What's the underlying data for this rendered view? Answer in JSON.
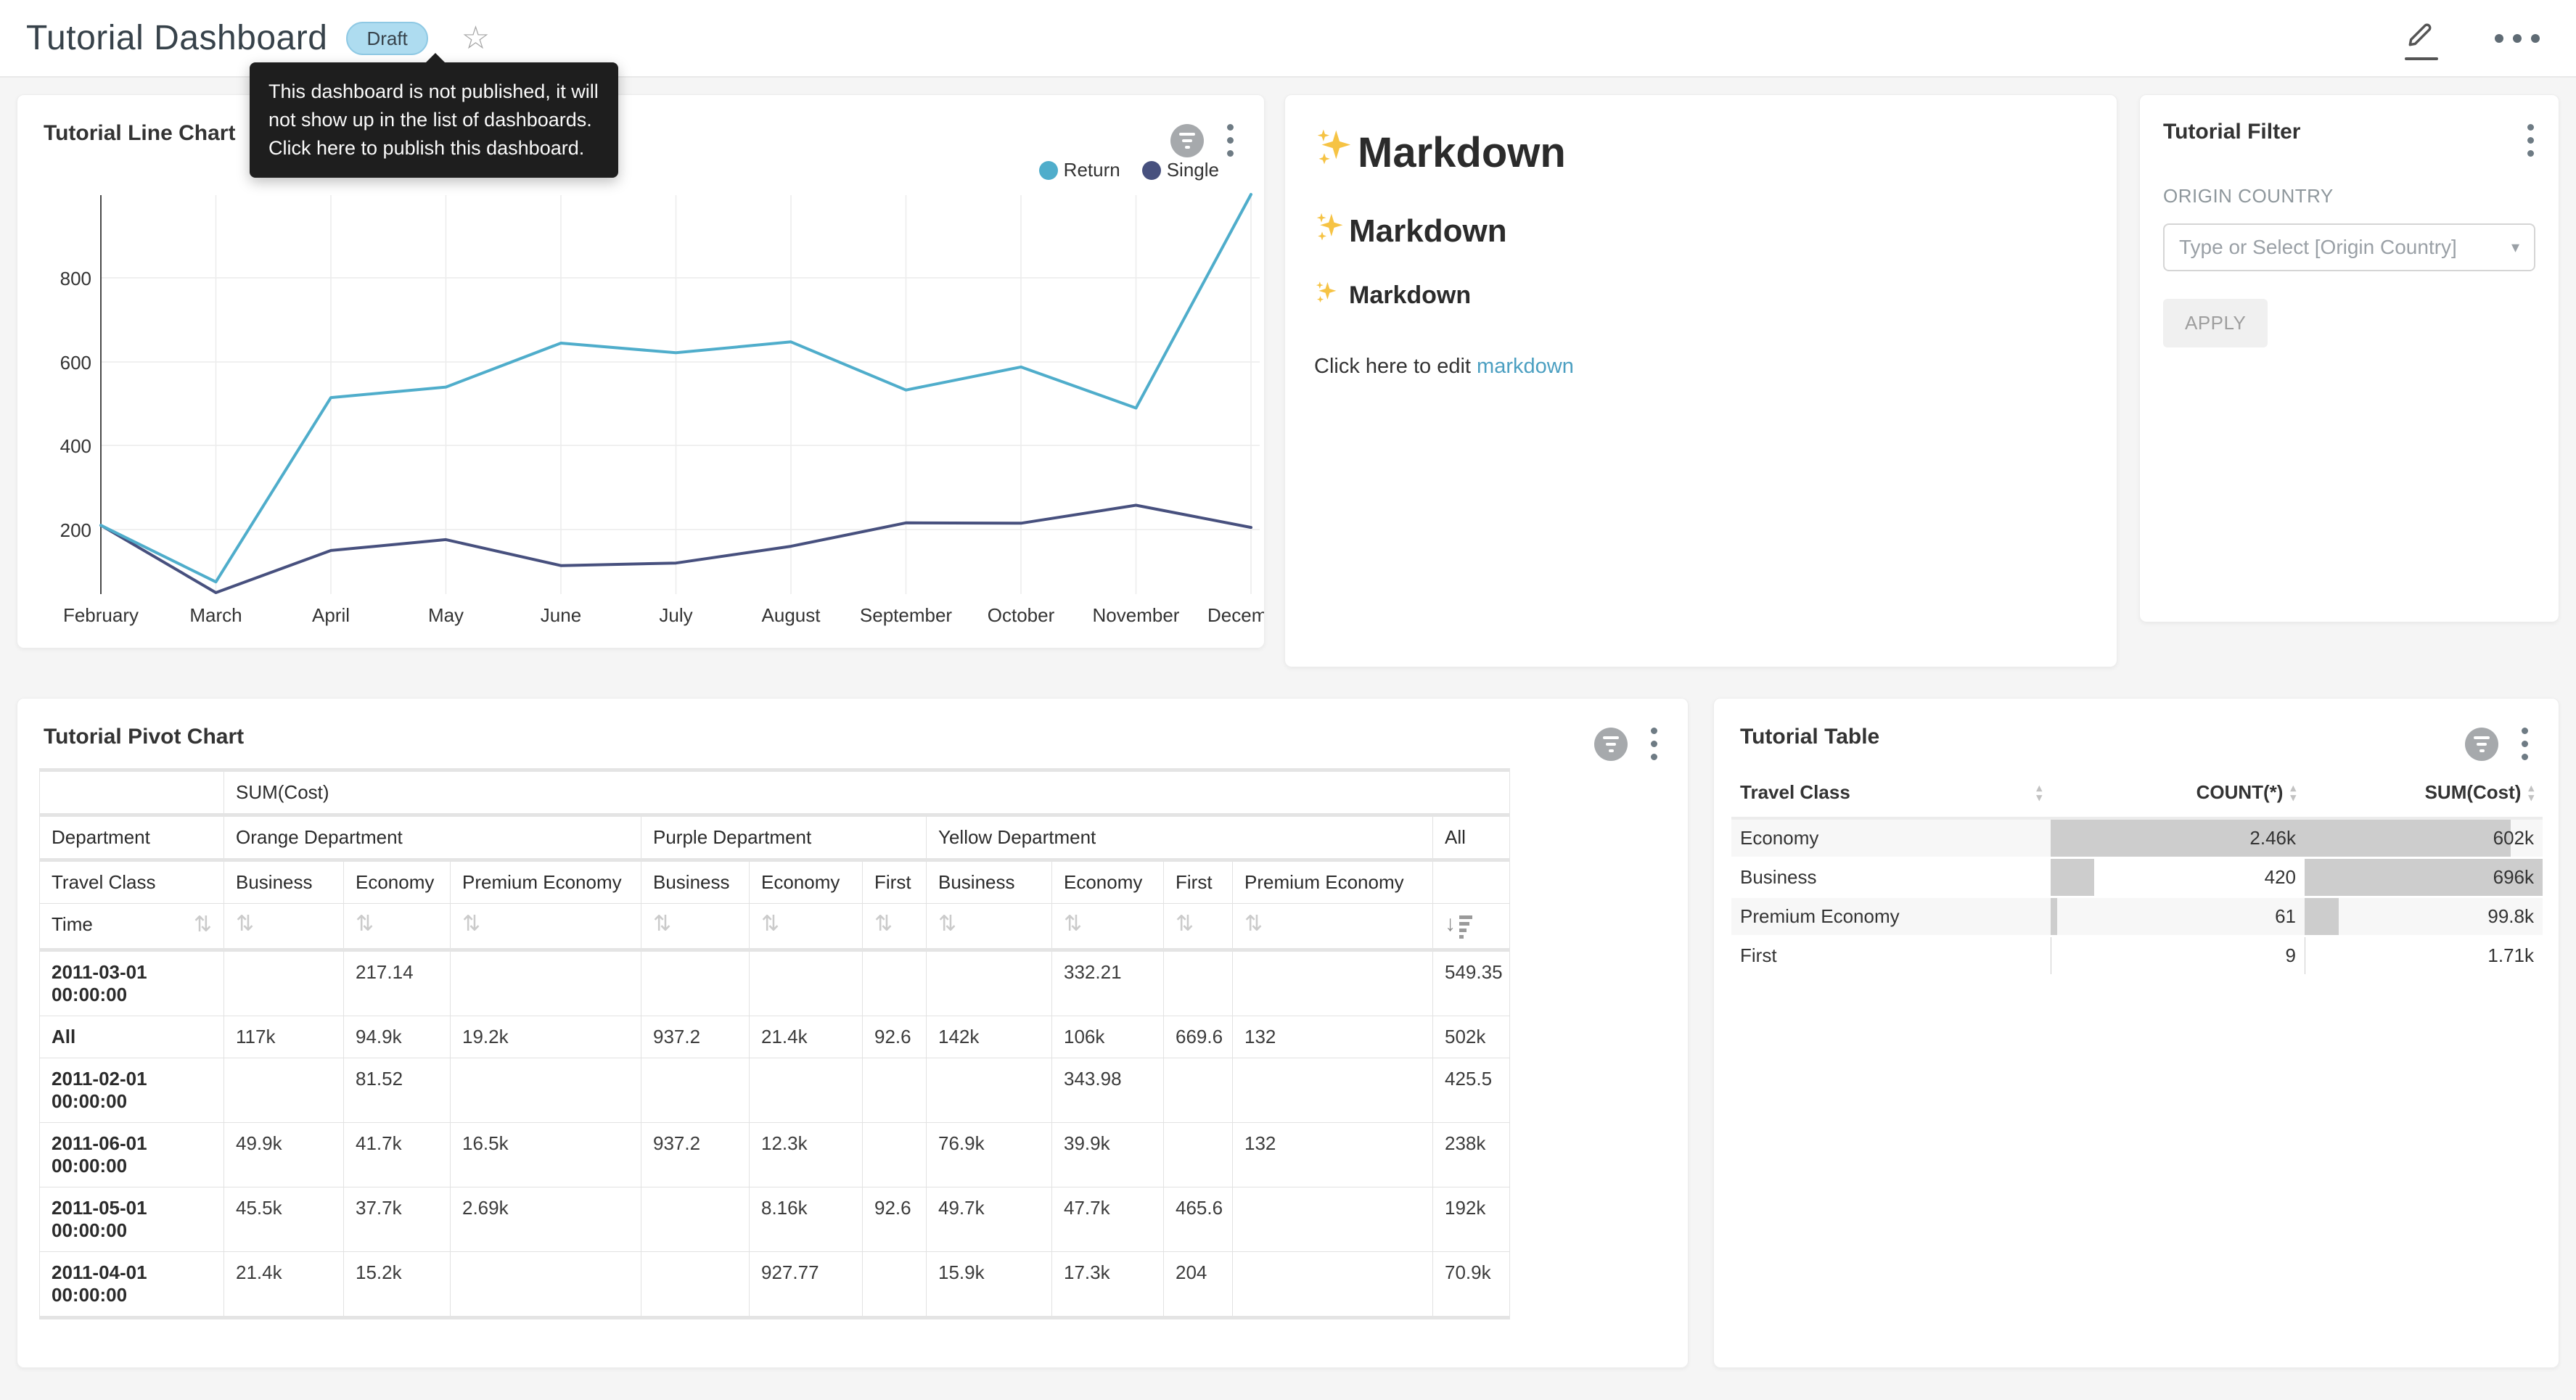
{
  "header": {
    "title": "Tutorial Dashboard",
    "status_badge": "Draft",
    "star_icon": "star-outline",
    "tooltip": "This dashboard is not published, it will not show up in the list of dashboards. Click here to publish this dashboard."
  },
  "colors": {
    "return_line": "#4FADCB",
    "single_line": "#47507E",
    "badge_bg": "#AEDCF0",
    "link": "#4B9FC1",
    "tooltip_bg": "#1E1E1E",
    "bar_fill": "#CDCDCD"
  },
  "chart_data": {
    "type": "line",
    "title": "Tutorial Line Chart",
    "x": [
      "February",
      "March",
      "April",
      "May",
      "June",
      "July",
      "August",
      "September",
      "October",
      "November",
      "December"
    ],
    "series": [
      {
        "name": "Return",
        "color": "#4FADCB",
        "values": [
          210,
          75,
          515,
          540,
          645,
          622,
          648,
          533,
          588,
          490,
          1000
        ]
      },
      {
        "name": "Single",
        "color": "#47507E",
        "values": [
          210,
          45,
          150,
          176,
          114,
          120,
          160,
          216,
          215,
          258,
          205
        ]
      }
    ],
    "yticks": [
      "800",
      "600",
      "400",
      "200"
    ],
    "ylim": [
      40,
      1000
    ],
    "grid": true,
    "legend_position": "top-right"
  },
  "markdown": {
    "h1": "Markdown",
    "h2": "Markdown",
    "h3": "Markdown",
    "paragraph_prefix": "Click here to edit ",
    "link_text": "markdown"
  },
  "filter": {
    "title": "Tutorial Filter",
    "field_label": "ORIGIN COUNTRY",
    "placeholder": "Type or Select [Origin Country]",
    "caret": "▾",
    "apply_label": "APPLY"
  },
  "pivot": {
    "title": "Tutorial Pivot Chart",
    "metric_header": "SUM(Cost)",
    "dept_label": "Department",
    "dept_groups": [
      "Orange Department",
      "Purple Department",
      "Yellow Department",
      "All"
    ],
    "class_label": "Travel Class",
    "class_cols": [
      "Business",
      "Economy",
      "Premium Economy",
      "Business",
      "Economy",
      "First",
      "Business",
      "Economy",
      "First",
      "Premium Economy"
    ],
    "time_label": "Time",
    "sort_icon": "⇅",
    "sort_desc_arrow": "↓",
    "rows": [
      {
        "label": "2011-03-01 00:00:00",
        "cells": [
          "",
          "217.14",
          "",
          "",
          "",
          "",
          "",
          "332.21",
          "",
          "",
          "549.35"
        ]
      },
      {
        "label": "All",
        "cells": [
          "117k",
          "94.9k",
          "19.2k",
          "937.2",
          "21.4k",
          "92.6",
          "142k",
          "106k",
          "669.6",
          "132",
          "502k"
        ]
      },
      {
        "label": "2011-02-01 00:00:00",
        "cells": [
          "",
          "81.52",
          "",
          "",
          "",
          "",
          "",
          "343.98",
          "",
          "",
          "425.5"
        ]
      },
      {
        "label": "2011-06-01 00:00:00",
        "cells": [
          "49.9k",
          "41.7k",
          "16.5k",
          "937.2",
          "12.3k",
          "",
          "76.9k",
          "39.9k",
          "",
          "132",
          "238k"
        ]
      },
      {
        "label": "2011-05-01 00:00:00",
        "cells": [
          "45.5k",
          "37.7k",
          "2.69k",
          "",
          "8.16k",
          "92.6",
          "49.7k",
          "47.7k",
          "465.6",
          "",
          "192k"
        ]
      },
      {
        "label": "2011-04-01 00:00:00",
        "cells": [
          "21.4k",
          "15.2k",
          "",
          "",
          "927.77",
          "",
          "15.9k",
          "17.3k",
          "204",
          "",
          "70.9k"
        ]
      }
    ]
  },
  "table": {
    "title": "Tutorial Table",
    "columns": [
      "Travel Class",
      "COUNT(*)",
      "SUM(Cost)"
    ],
    "sort_glyph_up": "▴",
    "sort_glyph_down": "▾",
    "rows": [
      {
        "label": "Economy",
        "count": "2.46k",
        "sum": "602k",
        "count_pct": 100,
        "sum_pct": 86.5
      },
      {
        "label": "Business",
        "count": "420",
        "sum": "696k",
        "count_pct": 17,
        "sum_pct": 100
      },
      {
        "label": "Premium Economy",
        "count": "61",
        "sum": "99.8k",
        "count_pct": 2.5,
        "sum_pct": 14.3
      },
      {
        "label": "First",
        "count": "9",
        "sum": "1.71k",
        "count_pct": 0.4,
        "sum_pct": 0.25
      }
    ]
  }
}
